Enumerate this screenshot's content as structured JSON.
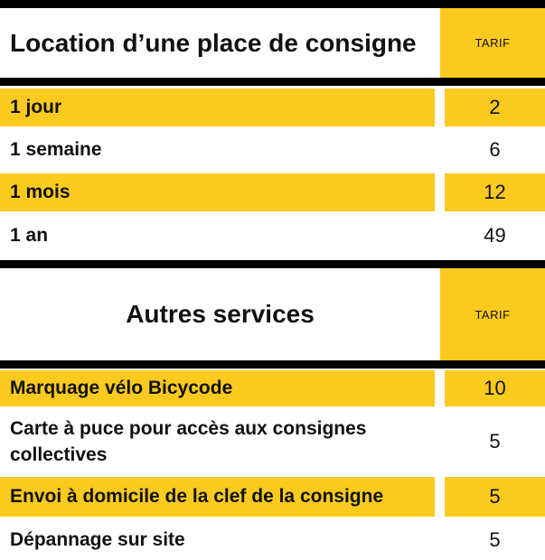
{
  "section1": {
    "title": "Location d’une place de consigne",
    "tarif_label": "TARIF",
    "rows": [
      {
        "label": "1 jour",
        "value": "2"
      },
      {
        "label": "1 semaine",
        "value": "6"
      },
      {
        "label": "1 mois",
        "value": "12"
      },
      {
        "label": "1 an",
        "value": "49"
      }
    ]
  },
  "section2": {
    "title": "Autres services",
    "tarif_label": "TARIF",
    "rows": [
      {
        "label": "Marquage vélo Bicycode",
        "value": "10"
      },
      {
        "label": "Carte à puce pour accès aux consignes collectives",
        "value": "5"
      },
      {
        "label": "Envoi à domicile de la clef de la consigne",
        "value": "5"
      },
      {
        "label": "Dépannage sur site",
        "value": "5"
      }
    ]
  },
  "colors": {
    "accent": "#fbca1f",
    "divider": "#000000",
    "background": "#ffffff"
  }
}
